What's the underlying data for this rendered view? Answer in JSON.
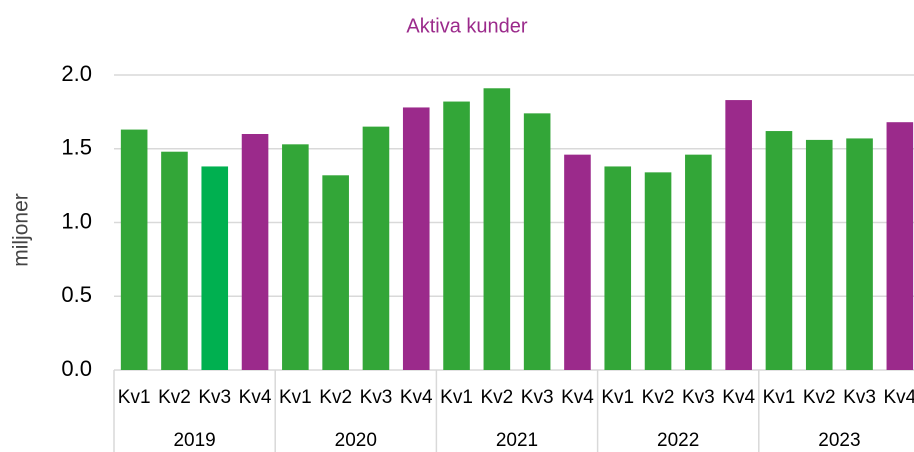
{
  "chart_data": {
    "type": "bar",
    "title": "Aktiva kunder",
    "y_label": "miljoner",
    "categories": [
      "Kv1",
      "Kv2",
      "Kv3",
      "Kv4",
      "Kv1",
      "Kv2",
      "Kv3",
      "Kv4",
      "Kv1",
      "Kv2",
      "Kv3",
      "Kv4",
      "Kv1",
      "Kv2",
      "Kv3",
      "Kv4",
      "Kv1",
      "Kv2",
      "Kv3",
      "Kv4"
    ],
    "groups": [
      "2019",
      "2020",
      "2021",
      "2022",
      "2023"
    ],
    "values": [
      1.63,
      1.48,
      1.38,
      1.6,
      1.53,
      1.32,
      1.65,
      1.78,
      1.82,
      1.91,
      1.74,
      1.46,
      1.38,
      1.34,
      1.46,
      1.83,
      1.62,
      1.56,
      1.57,
      1.68
    ],
    "colors": [
      "#33a638",
      "#33a638",
      "#00b050",
      "#9b2a8b",
      "#33a638",
      "#33a638",
      "#33a638",
      "#9b2a8b",
      "#33a638",
      "#33a638",
      "#33a638",
      "#9b2a8b",
      "#33a638",
      "#33a638",
      "#33a638",
      "#9b2a8b",
      "#33a638",
      "#33a638",
      "#33a638",
      "#9b2a8b"
    ],
    "title_color": "#9b2a8b",
    "ylim": [
      0,
      2.0
    ],
    "yticks": [
      {
        "value": 0,
        "label": "0.0"
      },
      {
        "value": 0.5,
        "label": "0.5"
      },
      {
        "value": 1.0,
        "label": "1.0"
      },
      {
        "value": 1.5,
        "label": "1.5"
      },
      {
        "value": 2.0,
        "label": "2.0"
      }
    ],
    "grid": true
  }
}
